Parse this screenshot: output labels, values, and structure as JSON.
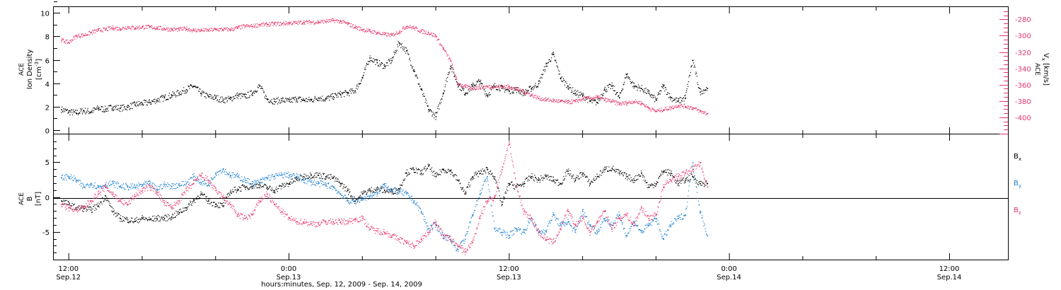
{
  "colors": {
    "black": "#000000",
    "pink": "#e8346a",
    "blue": "#1b7fd0"
  },
  "chart_data": [
    {
      "type": "scatter",
      "panel": "top",
      "ylabel_lines": [
        "ACE",
        "Ion Density"
      ],
      "ylabel_unit_base": "cm",
      "ylabel_unit_exp": "-3",
      "y2label_lines": [
        "ACE"
      ],
      "y2label_var": "V",
      "y2label_sub": "x",
      "y2label_unit": "km/s",
      "ylim": [
        -0.3,
        10.5
      ],
      "y2lim": [
        -420,
        -265
      ],
      "yticks": [
        0,
        2,
        4,
        6,
        8,
        10
      ],
      "yticklabels": [
        "0",
        "2",
        "4",
        "6",
        "8",
        "10"
      ],
      "y2ticks": [
        -400,
        -380,
        -360,
        -340,
        -320,
        -300,
        -280
      ],
      "y2ticklabels": [
        "-400",
        "-380",
        "-360",
        "-340",
        "-320",
        "-300",
        "-280"
      ],
      "series": [
        {
          "color": "black",
          "axis": "left",
          "x": [
            -1,
            0,
            1,
            2,
            3,
            4,
            5,
            6,
            7,
            8,
            9,
            10,
            11,
            12,
            13,
            14,
            15,
            16,
            17,
            18,
            19,
            20,
            21,
            22,
            23,
            24,
            25,
            26,
            27,
            28,
            29,
            30,
            31,
            32,
            33,
            34,
            35,
            36,
            37,
            38,
            39,
            40,
            41,
            42,
            43,
            44,
            45,
            46,
            47,
            48,
            49,
            50,
            51,
            52,
            53,
            54,
            55,
            56,
            57,
            58,
            59,
            60,
            61,
            62,
            63,
            64,
            65,
            66,
            67,
            68,
            69,
            70,
            71,
            72,
            73,
            74,
            75,
            76,
            77,
            78,
            79,
            80,
            81,
            82,
            83,
            84,
            85,
            86,
            87
          ],
          "y": [
            1.8,
            1.6,
            1.5,
            1.7,
            1.6,
            1.9,
            1.8,
            2.0,
            1.9,
            2.0,
            2.2,
            2.3,
            2.4,
            2.6,
            2.8,
            3.0,
            3.2,
            3.5,
            3.8,
            3.2,
            2.9,
            2.8,
            2.6,
            2.7,
            3.0,
            2.9,
            3.2,
            3.8,
            2.7,
            2.5,
            2.6,
            2.5,
            2.7,
            2.6,
            2.6,
            2.8,
            2.7,
            2.9,
            3.1,
            3.2,
            3.4,
            4.5,
            6.2,
            5.8,
            5.5,
            6.0,
            7.5,
            6.8,
            5.2,
            3.5,
            1.8,
            1.2,
            3.2,
            5.5,
            4.0,
            3.2,
            3.8,
            4.2,
            3.0,
            3.8,
            3.6,
            3.4,
            3.5,
            3.2,
            3.6,
            4.0,
            5.5,
            6.5,
            4.5,
            3.8,
            3.2,
            3.0,
            2.5,
            2.4,
            3.5,
            3.8,
            2.8,
            4.8,
            3.8,
            3.6,
            3.2,
            2.6,
            3.8,
            2.8,
            2.5,
            2.8,
            6.0,
            3.3,
            3.6
          ]
        },
        {
          "color": "pink",
          "axis": "right",
          "x": [
            -1,
            0,
            1,
            2,
            3,
            4,
            5,
            6,
            7,
            8,
            9,
            10,
            11,
            12,
            13,
            14,
            15,
            16,
            17,
            18,
            19,
            20,
            21,
            22,
            23,
            24,
            25,
            26,
            27,
            28,
            29,
            30,
            31,
            32,
            33,
            34,
            35,
            36,
            37,
            38,
            39,
            40,
            41,
            42,
            43,
            44,
            45,
            46,
            47,
            48,
            49,
            50,
            51,
            52,
            53,
            54,
            55,
            56,
            57,
            58,
            59,
            60,
            61,
            62,
            63,
            64,
            65,
            66,
            67,
            68,
            69,
            70,
            71,
            72,
            73,
            74,
            75,
            76,
            77,
            78,
            79,
            80,
            81,
            82,
            83,
            84,
            85,
            86,
            87
          ],
          "y": [
            -305,
            -308,
            -300,
            -299,
            -296,
            -293,
            -292,
            -290,
            -291,
            -289,
            -290,
            -289,
            -289,
            -290,
            -291,
            -292,
            -292,
            -291,
            -293,
            -293,
            -293,
            -292,
            -292,
            -292,
            -290,
            -288,
            -288,
            -286,
            -286,
            -285,
            -285,
            -284,
            -284,
            -283,
            -283,
            -283,
            -282,
            -281,
            -282,
            -285,
            -289,
            -292,
            -294,
            -296,
            -298,
            -299,
            -295,
            -288,
            -290,
            -294,
            -296,
            -300,
            -315,
            -330,
            -358,
            -362,
            -364,
            -363,
            -362,
            -362,
            -362,
            -362,
            -365,
            -368,
            -372,
            -376,
            -378,
            -379,
            -380,
            -381,
            -380,
            -377,
            -376,
            -375,
            -378,
            -380,
            -383,
            -382,
            -380,
            -382,
            -388,
            -392,
            -390,
            -388,
            -385,
            -386,
            -388,
            -392,
            -395
          ]
        }
      ]
    },
    {
      "type": "scatter",
      "panel": "bottom",
      "ylabel_lines": [
        "ACE",
        "B",
        "[nT]"
      ],
      "ylim": [
        -9,
        9
      ],
      "yticks": [
        -5,
        0,
        5
      ],
      "yticklabels": [
        "-5",
        "0",
        "5"
      ],
      "legend_position": "right",
      "series": [
        {
          "name": "B",
          "sub": "x",
          "color": "black",
          "x": [
            -1,
            0,
            1,
            2,
            3,
            4,
            5,
            6,
            7,
            8,
            9,
            10,
            11,
            12,
            13,
            14,
            15,
            16,
            17,
            18,
            19,
            20,
            21,
            22,
            23,
            24,
            25,
            26,
            27,
            28,
            29,
            30,
            31,
            32,
            33,
            34,
            35,
            36,
            37,
            38,
            39,
            40,
            41,
            42,
            43,
            44,
            45,
            46,
            47,
            48,
            49,
            50,
            51,
            52,
            53,
            54,
            55,
            56,
            57,
            58,
            59,
            60,
            61,
            62,
            63,
            64,
            65,
            66,
            67,
            68,
            69,
            70,
            71,
            72,
            73,
            74,
            75,
            76,
            77,
            78,
            79,
            80,
            81,
            82,
            83,
            84,
            85,
            86,
            87
          ],
          "y": [
            -0.5,
            -1.0,
            -1.5,
            -1.6,
            -1.8,
            -1.2,
            0.2,
            -2.0,
            -3.0,
            -3.2,
            -3.4,
            -3.0,
            -3.2,
            -3.0,
            -3.0,
            -2.8,
            -2.2,
            -1.5,
            -0.5,
            0.5,
            -0.5,
            -1.0,
            -1.2,
            0.8,
            1.2,
            1.5,
            1.6,
            1.8,
            1.4,
            1.0,
            1.6,
            2.0,
            2.6,
            3.0,
            3.2,
            3.2,
            3.0,
            2.8,
            2.0,
            1.0,
            -0.5,
            0.5,
            1.0,
            1.2,
            1.0,
            0.8,
            1.2,
            3.5,
            4.0,
            3.5,
            4.5,
            3.0,
            4.0,
            3.8,
            2.5,
            0.5,
            3.0,
            3.5,
            4.0,
            3.0,
            -1.0,
            2.0,
            1.5,
            2.0,
            3.0,
            2.5,
            3.0,
            2.5,
            2.0,
            3.8,
            2.5,
            3.5,
            2.0,
            3.0,
            4.0,
            4.2,
            3.5,
            3.0,
            2.5,
            3.5,
            1.5,
            2.0,
            3.8,
            3.5,
            2.0,
            2.5,
            3.0,
            2.0,
            2.0
          ]
        },
        {
          "name": "B",
          "sub": "y",
          "color": "blue",
          "x": [
            -1,
            0,
            1,
            2,
            3,
            4,
            5,
            6,
            7,
            8,
            9,
            10,
            11,
            12,
            13,
            14,
            15,
            16,
            17,
            18,
            19,
            20,
            21,
            22,
            23,
            24,
            25,
            26,
            27,
            28,
            29,
            30,
            31,
            32,
            33,
            34,
            35,
            36,
            37,
            38,
            39,
            40,
            41,
            42,
            43,
            44,
            45,
            46,
            47,
            48,
            49,
            50,
            51,
            52,
            53,
            54,
            55,
            56,
            57,
            58,
            59,
            60,
            61,
            62,
            63,
            64,
            65,
            66,
            67,
            68,
            69,
            70,
            71,
            72,
            73,
            74,
            75,
            76,
            77,
            78,
            79,
            80,
            81,
            82,
            83,
            84,
            85,
            86,
            87
          ],
          "y": [
            2.8,
            3.0,
            2.5,
            1.5,
            2.0,
            1.5,
            1.8,
            2.0,
            1.6,
            1.5,
            1.5,
            1.8,
            2.0,
            1.2,
            1.8,
            1.6,
            1.8,
            2.0,
            3.0,
            2.2,
            1.8,
            3.5,
            4.0,
            3.2,
            3.0,
            2.5,
            2.0,
            2.2,
            2.8,
            3.0,
            3.2,
            3.2,
            3.0,
            2.5,
            2.2,
            2.0,
            1.8,
            1.5,
            0.5,
            -0.5,
            -0.6,
            -0.2,
            0.2,
            0.5,
            2.0,
            1.0,
            0.8,
            0.5,
            -0.5,
            -2.0,
            -4.5,
            -4.0,
            -5.5,
            -6.0,
            -7.5,
            -6.0,
            -2.5,
            0.5,
            3.0,
            -4.5,
            -5.0,
            -5.5,
            -4.5,
            -5.0,
            -3.0,
            -5.0,
            -4.8,
            -2.5,
            -4.0,
            -3.5,
            -5.0,
            -2.0,
            -4.0,
            -5.0,
            -3.0,
            -4.0,
            -2.5,
            -5.5,
            -3.5,
            -5.0,
            -4.0,
            -3.0,
            -6.0,
            -4.0,
            -3.0,
            -2.5,
            5.0,
            -2.0,
            -5.5
          ]
        },
        {
          "name": "B",
          "sub": "z",
          "color": "pink",
          "x": [
            -1,
            0,
            1,
            2,
            3,
            4,
            5,
            6,
            7,
            8,
            9,
            10,
            11,
            12,
            13,
            14,
            15,
            16,
            17,
            18,
            19,
            20,
            21,
            22,
            23,
            24,
            25,
            26,
            27,
            28,
            29,
            30,
            31,
            32,
            33,
            34,
            35,
            36,
            37,
            38,
            39,
            40,
            41,
            42,
            43,
            44,
            45,
            46,
            47,
            48,
            49,
            50,
            51,
            52,
            53,
            54,
            55,
            56,
            57,
            58,
            59,
            60,
            61,
            62,
            63,
            64,
            65,
            66,
            67,
            68,
            69,
            70,
            71,
            72,
            73,
            74,
            75,
            76,
            77,
            78,
            79,
            80,
            81,
            82,
            83,
            84,
            85,
            86,
            87
          ],
          "y": [
            -1.0,
            -1.5,
            -1.8,
            -1.5,
            -0.5,
            0.5,
            1.5,
            0.5,
            -0.5,
            -1.0,
            0.2,
            1.0,
            1.5,
            0.8,
            -0.8,
            -1.5,
            -0.5,
            1.0,
            2.0,
            3.2,
            2.5,
            1.0,
            0.0,
            -1.0,
            -2.5,
            -3.0,
            -2.5,
            -0.5,
            0.5,
            -1.0,
            -2.0,
            -3.0,
            -3.5,
            -3.5,
            -3.8,
            -3.8,
            -3.5,
            -3.5,
            -3.5,
            -3.5,
            -3.2,
            -3.0,
            -4.5,
            -4.8,
            -5.0,
            -5.5,
            -6.0,
            -6.5,
            -7.0,
            -6.0,
            -5.0,
            -3.5,
            -5.5,
            -6.0,
            -7.0,
            -7.8,
            -6.5,
            -3.0,
            -0.5,
            0.0,
            4.0,
            8.0,
            1.5,
            -2.0,
            -3.0,
            -5.0,
            -6.0,
            -6.5,
            -4.5,
            -2.0,
            -4.0,
            -3.0,
            -5.0,
            -3.5,
            -2.0,
            -4.5,
            -3.0,
            -2.5,
            -4.0,
            -1.5,
            -3.0,
            -2.5,
            1.5,
            2.5,
            3.0,
            3.5,
            4.0,
            5.0,
            1.5
          ]
        }
      ]
    }
  ],
  "x_axis": {
    "xlim": [
      -2,
      128
    ],
    "major_ticks": [
      0,
      30,
      60,
      90,
      120
    ],
    "minor_tick_step": 10,
    "tick_labels": [
      {
        "x": 0,
        "time": "12:00",
        "date": "Sep.12"
      },
      {
        "x": 30,
        "time": "0:00",
        "date": "Sep.13"
      },
      {
        "x": 60,
        "time": "12:00",
        "date": "Sep.13"
      },
      {
        "x": 90,
        "time": "0:00",
        "date": "Sep.14"
      },
      {
        "x": 120,
        "time": "12:00",
        "date": "Sep.14"
      }
    ],
    "label": "hours:minutes, Sep. 12, 2009 - Sep. 14, 2009"
  }
}
